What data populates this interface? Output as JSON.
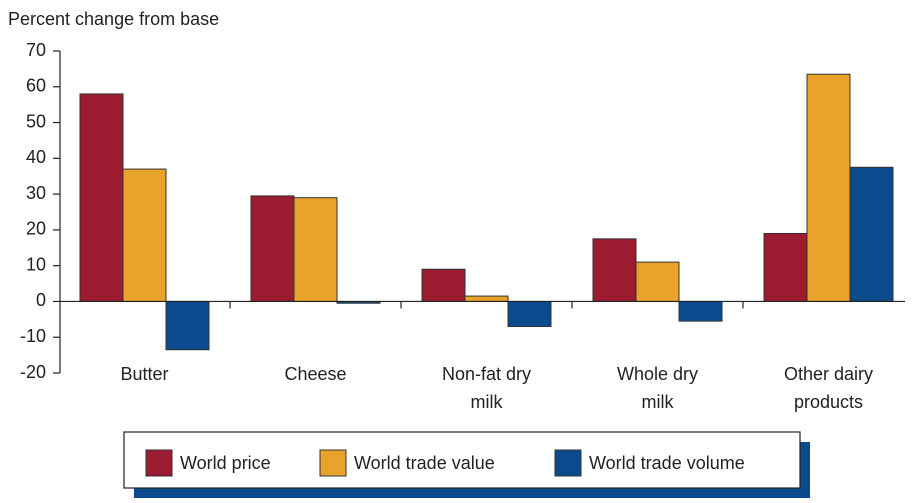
{
  "chart_data": {
    "type": "bar",
    "y_axis_label": "Percent change from base",
    "categories": [
      "Butter",
      "Cheese",
      "Non-fat dry milk",
      "Whole dry milk",
      "Other dairy products"
    ],
    "series": [
      {
        "name": "World price",
        "color": "#9b1b30",
        "values": [
          58,
          29.5,
          9,
          17.5,
          19
        ]
      },
      {
        "name": "World trade value",
        "color": "#e9a22a",
        "values": [
          37,
          29,
          1.5,
          11,
          63.5
        ]
      },
      {
        "name": "World trade volume",
        "color": "#0b4a8c",
        "values": [
          -13.5,
          -0.5,
          -7,
          -5.5,
          37.5
        ]
      }
    ],
    "ylim": [
      -20,
      70
    ],
    "yticks": [
      -20,
      -10,
      0,
      10,
      20,
      30,
      40,
      50,
      60,
      70
    ],
    "grid": false
  }
}
